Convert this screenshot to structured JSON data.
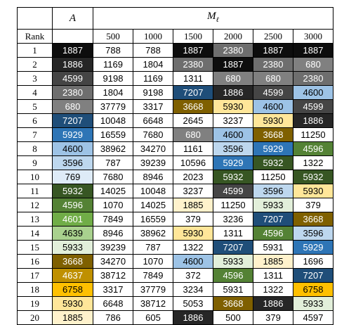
{
  "header": {
    "col_a": "A",
    "col_m_main": "M",
    "col_m_sub": "ℓ",
    "rank_label": "Rank",
    "m_values": [
      "500",
      "1000",
      "1500",
      "2000",
      "2500",
      "3000"
    ]
  },
  "palette": {
    "1887": "#0d0d0d",
    "1886": "#262626",
    "2380": "#6e6e6e",
    "680": "#808080",
    "4599": "#454545",
    "7207": "#1f4e79",
    "5929": "#2e75b6",
    "4600": "#9dc3e6",
    "3596": "#bdd7ee",
    "769": "#deebf7",
    "5932": "#375623",
    "4596": "#548235",
    "4601": "#70ad47",
    "4639": "#a9d18e",
    "5933": "#e2efda",
    "3668": "#7f6000",
    "4637": "#bf9000",
    "6758": "#ffc000",
    "5930": "#ffe699",
    "1885": "#fff2cc"
  },
  "rows": [
    {
      "rank": "1",
      "a": "1887",
      "m": [
        "788",
        "788",
        "1887",
        "2380",
        "1887",
        "1887"
      ]
    },
    {
      "rank": "2",
      "a": "1886",
      "m": [
        "1169",
        "1804",
        "2380",
        "1887",
        "2380",
        "680"
      ]
    },
    {
      "rank": "3",
      "a": "4599",
      "m": [
        "9198",
        "1169",
        "1311",
        "680",
        "680",
        "2380"
      ]
    },
    {
      "rank": "4",
      "a": "2380",
      "m": [
        "1804",
        "9198",
        "7207",
        "1886",
        "4599",
        "4600"
      ]
    },
    {
      "rank": "5",
      "a": "680",
      "m": [
        "37779",
        "3317",
        "3668",
        "5930",
        "4600",
        "4599"
      ]
    },
    {
      "rank": "6",
      "a": "7207",
      "m": [
        "10048",
        "6648",
        "2645",
        "3237",
        "5930",
        "1886"
      ]
    },
    {
      "rank": "7",
      "a": "5929",
      "m": [
        "16559",
        "7680",
        "680",
        "4600",
        "3668",
        "11250"
      ]
    },
    {
      "rank": "8",
      "a": "4600",
      "m": [
        "38962",
        "34270",
        "1161",
        "3596",
        "5929",
        "4596"
      ]
    },
    {
      "rank": "9",
      "a": "3596",
      "m": [
        "787",
        "39239",
        "10596",
        "5929",
        "5932",
        "1322"
      ]
    },
    {
      "rank": "10",
      "a": "769",
      "m": [
        "7680",
        "8946",
        "2023",
        "5932",
        "11250",
        "5932"
      ]
    },
    {
      "rank": "11",
      "a": "5932",
      "m": [
        "14025",
        "10048",
        "3237",
        "4599",
        "3596",
        "5930"
      ]
    },
    {
      "rank": "12",
      "a": "4596",
      "m": [
        "1070",
        "14025",
        "1885",
        "11250",
        "5933",
        "379"
      ]
    },
    {
      "rank": "13",
      "a": "4601",
      "m": [
        "7849",
        "16559",
        "379",
        "3236",
        "7207",
        "3668"
      ]
    },
    {
      "rank": "14",
      "a": "4639",
      "m": [
        "8946",
        "38962",
        "5930",
        "1311",
        "4596",
        "3596"
      ]
    },
    {
      "rank": "15",
      "a": "5933",
      "m": [
        "39239",
        "787",
        "1322",
        "7207",
        "5931",
        "5929"
      ]
    },
    {
      "rank": "16",
      "a": "3668",
      "m": [
        "34270",
        "1070",
        "4600",
        "5933",
        "1885",
        "1696"
      ]
    },
    {
      "rank": "17",
      "a": "4637",
      "m": [
        "38712",
        "7849",
        "372",
        "4596",
        "1311",
        "7207"
      ]
    },
    {
      "rank": "18",
      "a": "6758",
      "m": [
        "3317",
        "37779",
        "3234",
        "5931",
        "1322",
        "6758"
      ]
    },
    {
      "rank": "19",
      "a": "5930",
      "m": [
        "6648",
        "38712",
        "5053",
        "3668",
        "1886",
        "5933"
      ]
    },
    {
      "rank": "20",
      "a": "1885",
      "m": [
        "786",
        "605",
        "1886",
        "500",
        "379",
        "4597"
      ]
    }
  ]
}
